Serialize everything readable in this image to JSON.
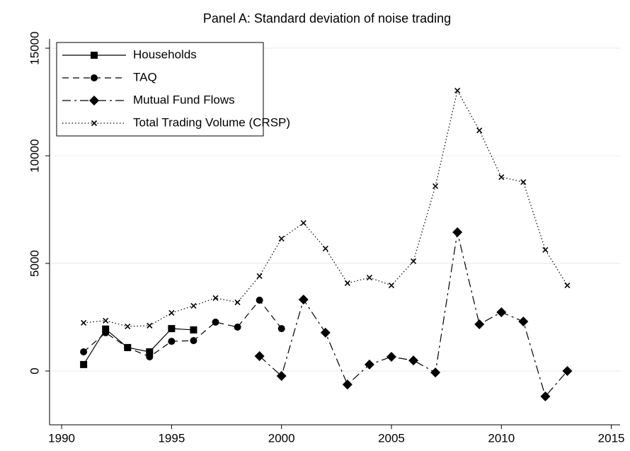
{
  "chart_data": {
    "type": "line",
    "title": "Panel A: Standard deviation of noise trading",
    "x": [
      1991,
      1992,
      1993,
      1994,
      1995,
      1996,
      1997,
      1998,
      1999,
      2000,
      2001,
      2002,
      2003,
      2004,
      2005,
      2006,
      2007,
      2008,
      2009,
      2010,
      2011,
      2012,
      2013
    ],
    "series": [
      {
        "name": "Households",
        "color": "#000000",
        "marker": "square",
        "line_style": "solid",
        "values": [
          300,
          1950,
          1090,
          890,
          1970,
          1910,
          null,
          null,
          null,
          null,
          null,
          null,
          null,
          null,
          null,
          null,
          null,
          null,
          null,
          null,
          null,
          null,
          null
        ]
      },
      {
        "name": "TAQ",
        "color": "#000000",
        "marker": "circle",
        "line_style": "dashed",
        "values": [
          890,
          1780,
          1090,
          660,
          1380,
          1410,
          2270,
          2040,
          3290,
          1970,
          null,
          null,
          null,
          null,
          null,
          null,
          null,
          null,
          null,
          null,
          null,
          null,
          null
        ]
      },
      {
        "name": "Mutual Fund Flows",
        "color": "#000000",
        "marker": "diamond",
        "line_style": "dashdot",
        "values": [
          null,
          null,
          null,
          null,
          null,
          null,
          null,
          null,
          690,
          -230,
          3320,
          1780,
          -630,
          300,
          660,
          490,
          -70,
          6450,
          2170,
          2730,
          2300,
          -1180,
          0
        ]
      },
      {
        "name": "Total Trading Volume (CRSP)",
        "color": "#000000",
        "marker": "x",
        "line_style": "dotted",
        "values": [
          2240,
          2340,
          2070,
          2110,
          2700,
          3030,
          3390,
          3190,
          4410,
          6150,
          6880,
          5690,
          4080,
          4340,
          3980,
          5100,
          8590,
          13030,
          11180,
          9010,
          8780,
          5630,
          3980
        ]
      }
    ],
    "xlim": [
      1989.45,
      2015.4
    ],
    "xticks": [
      1990,
      1995,
      2000,
      2005,
      2010,
      2015
    ],
    "ylim": [
      -2500,
      15430
    ],
    "yticks": [
      0,
      5000,
      10000,
      15000
    ],
    "grid": true,
    "legend": "top-left"
  }
}
